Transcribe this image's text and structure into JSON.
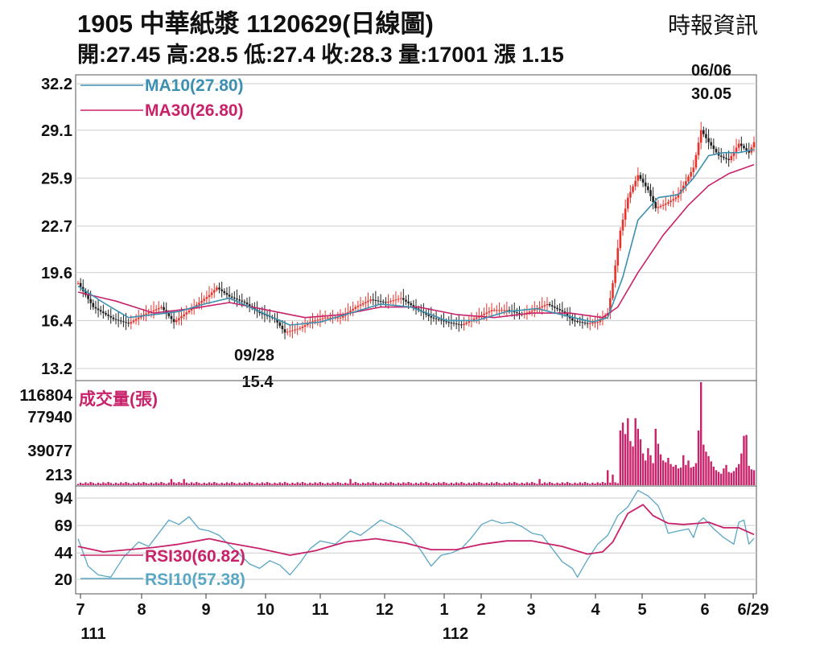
{
  "header": {
    "title": "1905  中華紙漿 1120629(日線圖)",
    "source": "時報資訊",
    "quote": "開:27.45 高:28.5 低:27.4 收:28.3 量:17001 漲 1.15"
  },
  "colors": {
    "up": "#e8322b",
    "down": "#222222",
    "ma10": "#3b8fb0",
    "ma30": "#c8226a",
    "volume": "#c8226a",
    "rsi30": "#c8226a",
    "rsi10": "#5aa7c4",
    "grid": "#cccccc"
  },
  "chart_data": [
    {
      "type": "candlestick",
      "title": "",
      "x_months": [
        "7",
        "8",
        "9",
        "10",
        "11",
        "12",
        "1",
        "2",
        "3",
        "4",
        "5",
        "6",
        "6/29"
      ],
      "year_labels": [
        {
          "label": "111",
          "month": "7"
        },
        {
          "label": "112",
          "month": "1"
        }
      ],
      "y_ticks": [
        "32.2",
        "29.1",
        "25.9",
        "22.7",
        "19.6",
        "16.4",
        "13.2"
      ],
      "ylim": [
        13.2,
        32.2
      ],
      "series": [
        {
          "name": "MA10(27.80)",
          "last": 27.8
        },
        {
          "name": "MA30(26.80)",
          "last": 26.8
        }
      ],
      "close_path": [
        [
          0,
          18.9
        ],
        [
          6,
          17.3
        ],
        [
          14,
          16.5
        ],
        [
          20,
          16.2
        ],
        [
          26,
          16.8
        ],
        [
          33,
          17.3
        ],
        [
          38,
          16.3
        ],
        [
          45,
          17.2
        ],
        [
          52,
          18.1
        ],
        [
          55,
          18.6
        ],
        [
          60,
          18.0
        ],
        [
          66,
          17.6
        ],
        [
          72,
          16.9
        ],
        [
          78,
          16.5
        ],
        [
          82,
          15.6
        ],
        [
          88,
          15.9
        ],
        [
          92,
          16.3
        ],
        [
          98,
          16.6
        ],
        [
          104,
          16.6
        ],
        [
          110,
          17.3
        ],
        [
          116,
          17.8
        ],
        [
          122,
          17.6
        ],
        [
          128,
          17.9
        ],
        [
          134,
          17.2
        ],
        [
          140,
          16.6
        ],
        [
          146,
          16.3
        ],
        [
          152,
          16.1
        ],
        [
          158,
          16.6
        ],
        [
          164,
          17.1
        ],
        [
          170,
          17.1
        ],
        [
          176,
          16.8
        ],
        [
          182,
          17.2
        ],
        [
          186,
          17.5
        ],
        [
          192,
          17.0
        ],
        [
          196,
          16.4
        ],
        [
          202,
          16.2
        ],
        [
          206,
          16.3
        ],
        [
          210,
          16.9
        ],
        [
          212,
          18.9
        ],
        [
          215,
          22.4
        ],
        [
          218,
          24.6
        ],
        [
          222,
          26.1
        ],
        [
          226,
          25.1
        ],
        [
          229,
          23.9
        ],
        [
          233,
          24.2
        ],
        [
          237,
          24.6
        ],
        [
          240,
          25.4
        ],
        [
          244,
          26.6
        ],
        [
          247,
          29.1
        ],
        [
          250,
          28.3
        ],
        [
          254,
          27.4
        ],
        [
          258,
          27.1
        ],
        [
          262,
          28.2
        ],
        [
          266,
          27.6
        ],
        [
          268,
          28.3
        ]
      ],
      "ma10_path": [
        [
          0,
          18.7
        ],
        [
          10,
          17.6
        ],
        [
          20,
          16.6
        ],
        [
          30,
          16.8
        ],
        [
          40,
          17.0
        ],
        [
          50,
          17.5
        ],
        [
          60,
          17.9
        ],
        [
          72,
          17.0
        ],
        [
          84,
          16.1
        ],
        [
          96,
          16.3
        ],
        [
          108,
          16.9
        ],
        [
          120,
          17.5
        ],
        [
          132,
          17.3
        ],
        [
          146,
          16.4
        ],
        [
          158,
          16.4
        ],
        [
          170,
          17.0
        ],
        [
          182,
          17.2
        ],
        [
          194,
          16.7
        ],
        [
          204,
          16.3
        ],
        [
          210,
          16.6
        ],
        [
          216,
          19.3
        ],
        [
          222,
          23.1
        ],
        [
          230,
          24.6
        ],
        [
          238,
          24.8
        ],
        [
          244,
          25.9
        ],
        [
          250,
          27.4
        ],
        [
          256,
          27.6
        ],
        [
          262,
          27.6
        ],
        [
          268,
          27.8
        ]
      ],
      "ma30_path": [
        [
          0,
          18.3
        ],
        [
          15,
          17.7
        ],
        [
          30,
          16.9
        ],
        [
          45,
          17.2
        ],
        [
          60,
          17.6
        ],
        [
          75,
          17.1
        ],
        [
          90,
          16.6
        ],
        [
          105,
          16.8
        ],
        [
          120,
          17.3
        ],
        [
          135,
          17.3
        ],
        [
          150,
          16.8
        ],
        [
          165,
          16.6
        ],
        [
          180,
          16.9
        ],
        [
          195,
          16.9
        ],
        [
          208,
          16.6
        ],
        [
          214,
          17.3
        ],
        [
          222,
          19.6
        ],
        [
          232,
          22.1
        ],
        [
          242,
          24.1
        ],
        [
          250,
          25.4
        ],
        [
          258,
          26.2
        ],
        [
          268,
          26.8
        ]
      ],
      "annotations": [
        {
          "text": "06/06",
          "value": "30.05",
          "day": 247
        },
        {
          "text": "09/28",
          "value": "15.4",
          "day": 82
        }
      ]
    },
    {
      "type": "bar",
      "title": "成交量(張)",
      "y_ticks": [
        "116804",
        "77940",
        "39077",
        "213"
      ],
      "ylim": [
        0,
        116804
      ],
      "spikes": [
        [
          210,
          17000
        ],
        [
          212,
          12000
        ],
        [
          215,
          62000
        ],
        [
          216,
          71000
        ],
        [
          217,
          58000
        ],
        [
          218,
          76000
        ],
        [
          219,
          50000
        ],
        [
          220,
          44000
        ],
        [
          221,
          76000
        ],
        [
          222,
          64000
        ],
        [
          223,
          52000
        ],
        [
          224,
          36000
        ],
        [
          225,
          28000
        ],
        [
          226,
          42000
        ],
        [
          227,
          34000
        ],
        [
          228,
          25000
        ],
        [
          229,
          64000
        ],
        [
          230,
          47000
        ],
        [
          231,
          35000
        ],
        [
          232,
          28000
        ],
        [
          233,
          26000
        ],
        [
          234,
          31000
        ],
        [
          235,
          24000
        ],
        [
          236,
          21000
        ],
        [
          237,
          23000
        ],
        [
          238,
          19000
        ],
        [
          239,
          20000
        ],
        [
          240,
          34000
        ],
        [
          241,
          23000
        ],
        [
          242,
          28000
        ],
        [
          243,
          20000
        ],
        [
          244,
          21000
        ],
        [
          245,
          25000
        ],
        [
          246,
          62000
        ],
        [
          247,
          116804
        ],
        [
          248,
          46000
        ],
        [
          249,
          38000
        ],
        [
          250,
          33000
        ],
        [
          251,
          27000
        ],
        [
          252,
          21000
        ],
        [
          253,
          17000
        ],
        [
          254,
          15000
        ],
        [
          255,
          13000
        ],
        [
          256,
          19000
        ],
        [
          257,
          23000
        ],
        [
          258,
          15000
        ],
        [
          259,
          14000
        ],
        [
          260,
          16000
        ],
        [
          261,
          20000
        ],
        [
          262,
          24000
        ],
        [
          263,
          36000
        ],
        [
          264,
          56000
        ],
        [
          265,
          57000
        ],
        [
          266,
          22000
        ],
        [
          267,
          18000
        ],
        [
          268,
          17001
        ]
      ],
      "base_volume": 2500
    },
    {
      "type": "line",
      "title": "",
      "y_ticks": [
        "94",
        "69",
        "44",
        "20"
      ],
      "ylim": [
        8,
        104
      ],
      "series": [
        {
          "name": "RSI30(60.82)",
          "last": 60.82
        },
        {
          "name": "RSI10(57.38)",
          "last": 57.38
        }
      ],
      "rsi30_path": [
        [
          0,
          50
        ],
        [
          10,
          45
        ],
        [
          20,
          47
        ],
        [
          30,
          49
        ],
        [
          40,
          52
        ],
        [
          52,
          57
        ],
        [
          60,
          53
        ],
        [
          72,
          48
        ],
        [
          84,
          42
        ],
        [
          94,
          46
        ],
        [
          106,
          54
        ],
        [
          118,
          57
        ],
        [
          130,
          53
        ],
        [
          140,
          47
        ],
        [
          150,
          47
        ],
        [
          160,
          52
        ],
        [
          170,
          55
        ],
        [
          180,
          55
        ],
        [
          192,
          50
        ],
        [
          202,
          43
        ],
        [
          208,
          45
        ],
        [
          212,
          54
        ],
        [
          218,
          80
        ],
        [
          224,
          88
        ],
        [
          228,
          78
        ],
        [
          234,
          71
        ],
        [
          240,
          70
        ],
        [
          246,
          71
        ],
        [
          250,
          72
        ],
        [
          256,
          67
        ],
        [
          262,
          67
        ],
        [
          268,
          60.82
        ]
      ],
      "rsi10_path": [
        [
          0,
          57
        ],
        [
          4,
          32
        ],
        [
          8,
          24
        ],
        [
          13,
          22
        ],
        [
          18,
          40
        ],
        [
          24,
          54
        ],
        [
          28,
          50
        ],
        [
          32,
          62
        ],
        [
          36,
          74
        ],
        [
          40,
          70
        ],
        [
          44,
          77
        ],
        [
          48,
          66
        ],
        [
          52,
          64
        ],
        [
          56,
          60
        ],
        [
          60,
          51
        ],
        [
          64,
          43
        ],
        [
          68,
          34
        ],
        [
          72,
          30
        ],
        [
          76,
          37
        ],
        [
          80,
          33
        ],
        [
          84,
          24
        ],
        [
          88,
          35
        ],
        [
          92,
          48
        ],
        [
          96,
          55
        ],
        [
          102,
          52
        ],
        [
          108,
          64
        ],
        [
          112,
          60
        ],
        [
          116,
          67
        ],
        [
          120,
          74
        ],
        [
          124,
          70
        ],
        [
          128,
          66
        ],
        [
          132,
          58
        ],
        [
          136,
          46
        ],
        [
          140,
          32
        ],
        [
          144,
          42
        ],
        [
          148,
          44
        ],
        [
          152,
          48
        ],
        [
          156,
          58
        ],
        [
          160,
          70
        ],
        [
          164,
          74
        ],
        [
          168,
          71
        ],
        [
          172,
          72
        ],
        [
          176,
          68
        ],
        [
          180,
          62
        ],
        [
          184,
          60
        ],
        [
          188,
          48
        ],
        [
          192,
          36
        ],
        [
          196,
          30
        ],
        [
          198,
          22
        ],
        [
          202,
          38
        ],
        [
          206,
          52
        ],
        [
          210,
          60
        ],
        [
          214,
          78
        ],
        [
          218,
          86
        ],
        [
          222,
          101
        ],
        [
          226,
          96
        ],
        [
          230,
          87
        ],
        [
          232,
          76
        ],
        [
          234,
          62
        ],
        [
          238,
          64
        ],
        [
          242,
          66
        ],
        [
          244,
          58
        ],
        [
          246,
          72
        ],
        [
          248,
          76
        ],
        [
          252,
          66
        ],
        [
          256,
          58
        ],
        [
          260,
          52
        ],
        [
          262,
          72
        ],
        [
          264,
          74
        ],
        [
          266,
          52
        ],
        [
          268,
          57.38
        ]
      ]
    }
  ]
}
